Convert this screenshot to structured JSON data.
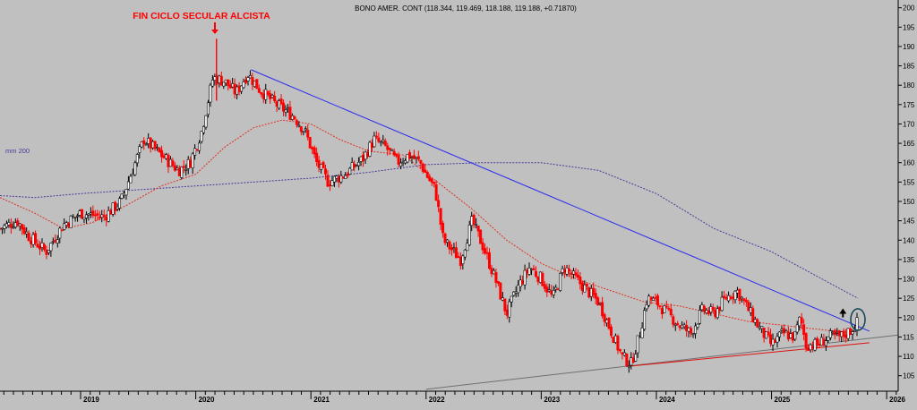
{
  "chart_data": {
    "type": "candlestick",
    "header": "BONO AMER. CONT (118.344, 119.469, 118.188, 119.188, +0.71870)",
    "annotation_title": "FIN  CICLO SECULAR ALCISTA",
    "ma_label": "mm 200",
    "y_ticks": [
      105,
      110,
      115,
      120,
      125,
      130,
      135,
      140,
      145,
      150,
      155,
      160,
      165,
      170,
      175,
      180,
      185,
      190,
      195,
      200
    ],
    "ylim": [
      101,
      202
    ],
    "x_years": [
      {
        "label": "2019",
        "t": 2019.0
      },
      {
        "label": "2020",
        "t": 2020.0
      },
      {
        "label": "2021",
        "t": 2021.0
      },
      {
        "label": "2022",
        "t": 2022.0
      },
      {
        "label": "2023",
        "t": 2023.0
      },
      {
        "label": "2024",
        "t": 2024.0
      },
      {
        "label": "2025",
        "t": 2025.0
      },
      {
        "label": "2026",
        "t": 2026.0
      }
    ],
    "xlim": [
      2018.3,
      2026.1
    ],
    "price_path": [
      [
        2018.3,
        143
      ],
      [
        2018.45,
        145
      ],
      [
        2018.55,
        141
      ],
      [
        2018.7,
        137
      ],
      [
        2018.85,
        144
      ],
      [
        2019.0,
        147
      ],
      [
        2019.2,
        146
      ],
      [
        2019.35,
        150
      ],
      [
        2019.45,
        158
      ],
      [
        2019.55,
        166
      ],
      [
        2019.7,
        162
      ],
      [
        2019.85,
        158
      ],
      [
        2019.95,
        160
      ],
      [
        2020.05,
        168
      ],
      [
        2020.15,
        182
      ],
      [
        2020.25,
        181
      ],
      [
        2020.35,
        178
      ],
      [
        2020.45,
        183
      ],
      [
        2020.55,
        179
      ],
      [
        2020.7,
        175
      ],
      [
        2020.85,
        172
      ],
      [
        2020.95,
        168
      ],
      [
        2021.05,
        160
      ],
      [
        2021.15,
        155
      ],
      [
        2021.3,
        157
      ],
      [
        2021.45,
        161
      ],
      [
        2021.55,
        166
      ],
      [
        2021.65,
        164
      ],
      [
        2021.75,
        160
      ],
      [
        2021.85,
        162
      ],
      [
        2021.95,
        160
      ],
      [
        2022.0,
        157
      ],
      [
        2022.08,
        153
      ],
      [
        2022.15,
        140
      ],
      [
        2022.3,
        135
      ],
      [
        2022.4,
        145
      ],
      [
        2022.5,
        138
      ],
      [
        2022.6,
        130
      ],
      [
        2022.7,
        121
      ],
      [
        2022.8,
        128
      ],
      [
        2022.9,
        133
      ],
      [
        2023.0,
        130
      ],
      [
        2023.1,
        125
      ],
      [
        2023.2,
        133
      ],
      [
        2023.3,
        130
      ],
      [
        2023.4,
        127
      ],
      [
        2023.5,
        124
      ],
      [
        2023.6,
        117
      ],
      [
        2023.7,
        110
      ],
      [
        2023.78,
        108
      ],
      [
        2023.85,
        115
      ],
      [
        2023.92,
        125
      ],
      [
        2024.0,
        124
      ],
      [
        2024.1,
        121
      ],
      [
        2024.2,
        118
      ],
      [
        2024.3,
        116
      ],
      [
        2024.4,
        122
      ],
      [
        2024.5,
        121
      ],
      [
        2024.6,
        125
      ],
      [
        2024.7,
        127
      ],
      [
        2024.8,
        122
      ],
      [
        2024.9,
        117
      ],
      [
        2025.0,
        113
      ],
      [
        2025.1,
        116
      ],
      [
        2025.2,
        115
      ],
      [
        2025.25,
        120
      ],
      [
        2025.3,
        113
      ],
      [
        2025.4,
        113
      ],
      [
        2025.5,
        115
      ],
      [
        2025.6,
        115
      ],
      [
        2025.7,
        117
      ],
      [
        2025.75,
        119
      ]
    ],
    "spike": {
      "t": 2020.18,
      "high": 192,
      "low": 176
    },
    "ma200_path": [
      [
        2018.3,
        151.5
      ],
      [
        2018.6,
        151
      ],
      [
        2019.0,
        152
      ],
      [
        2019.5,
        153
      ],
      [
        2020.0,
        154
      ],
      [
        2020.5,
        155
      ],
      [
        2021.0,
        156
      ],
      [
        2021.5,
        157.5
      ],
      [
        2022.0,
        159.5
      ],
      [
        2022.5,
        160
      ],
      [
        2023.0,
        160
      ],
      [
        2023.5,
        158
      ],
      [
        2024.0,
        152
      ],
      [
        2024.5,
        143
      ],
      [
        2025.0,
        137
      ],
      [
        2025.5,
        129
      ],
      [
        2025.75,
        125
      ]
    ],
    "ma_short_path": [
      [
        2018.3,
        151
      ],
      [
        2018.6,
        147
      ],
      [
        2018.85,
        143
      ],
      [
        2019.1,
        144.5
      ],
      [
        2019.4,
        149
      ],
      [
        2019.7,
        154
      ],
      [
        2020.0,
        157
      ],
      [
        2020.25,
        164
      ],
      [
        2020.5,
        169
      ],
      [
        2020.75,
        171
      ],
      [
        2021.0,
        170
      ],
      [
        2021.25,
        166
      ],
      [
        2021.5,
        163
      ],
      [
        2021.8,
        162
      ],
      [
        2022.1,
        155
      ],
      [
        2022.4,
        148
      ],
      [
        2022.7,
        140
      ],
      [
        2023.0,
        134
      ],
      [
        2023.3,
        130
      ],
      [
        2023.6,
        127
      ],
      [
        2023.9,
        124
      ],
      [
        2024.2,
        123
      ],
      [
        2024.5,
        121
      ],
      [
        2024.8,
        119
      ],
      [
        2025.1,
        118
      ],
      [
        2025.4,
        117
      ],
      [
        2025.7,
        116
      ]
    ],
    "resistance_line": {
      "from": [
        2020.48,
        184
      ],
      "to": [
        2025.85,
        116.5
      ],
      "color": "#2a2af0"
    },
    "support_line": {
      "from": [
        2023.78,
        107.5
      ],
      "to": [
        2025.85,
        113.5
      ],
      "color": "#e01010"
    },
    "long_trendline": {
      "from": [
        2022.0,
        101.5
      ],
      "to": [
        2026.1,
        115.5
      ],
      "color": "#707070"
    },
    "circle_at": [
      2025.75,
      119.5
    ],
    "up_arrow_at": [
      2025.62,
      121
    ],
    "colors": {
      "background": "#c0c0c0",
      "candle_up": "#000000",
      "candle_down": "#ff0000",
      "ma200": "#4a3a9a",
      "ma_short": "#e03020",
      "title_red": "#ff0000",
      "circle": "#1a4a5a"
    }
  }
}
